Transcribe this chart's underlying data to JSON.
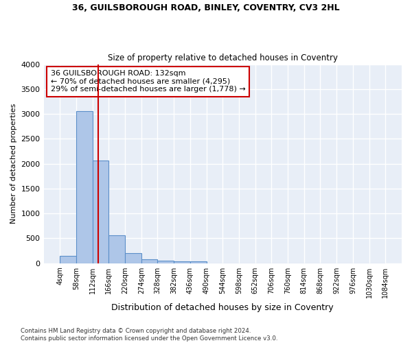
{
  "title_line1": "36, GUILSBOROUGH ROAD, BINLEY, COVENTRY, CV3 2HL",
  "title_line2": "Size of property relative to detached houses in Coventry",
  "xlabel": "Distribution of detached houses by size in Coventry",
  "ylabel": "Number of detached properties",
  "footnote1": "Contains HM Land Registry data © Crown copyright and database right 2024.",
  "footnote2": "Contains public sector information licensed under the Open Government Licence v3.0.",
  "property_size": 132,
  "annotation_line1": "36 GUILSBOROUGH ROAD: 132sqm",
  "annotation_line2": "← 70% of detached houses are smaller (4,295)",
  "annotation_line3": "29% of semi-detached houses are larger (1,778) →",
  "bin_edges": [
    4,
    58,
    112,
    166,
    220,
    274,
    328,
    382,
    436,
    490,
    544,
    598,
    652,
    706,
    760,
    814,
    868,
    922,
    976,
    1030,
    1084
  ],
  "bin_counts": [
    150,
    3060,
    2060,
    560,
    200,
    80,
    55,
    40,
    40,
    0,
    0,
    0,
    0,
    0,
    0,
    0,
    0,
    0,
    0,
    0
  ],
  "bar_color": "#aec6e8",
  "bar_edge_color": "#5b8fc9",
  "red_line_color": "#cc0000",
  "annotation_box_color": "#cc0000",
  "background_color": "#e8eef7",
  "grid_color": "#ffffff",
  "ylim": [
    0,
    4000
  ],
  "yticks": [
    0,
    500,
    1000,
    1500,
    2000,
    2500,
    3000,
    3500,
    4000
  ]
}
